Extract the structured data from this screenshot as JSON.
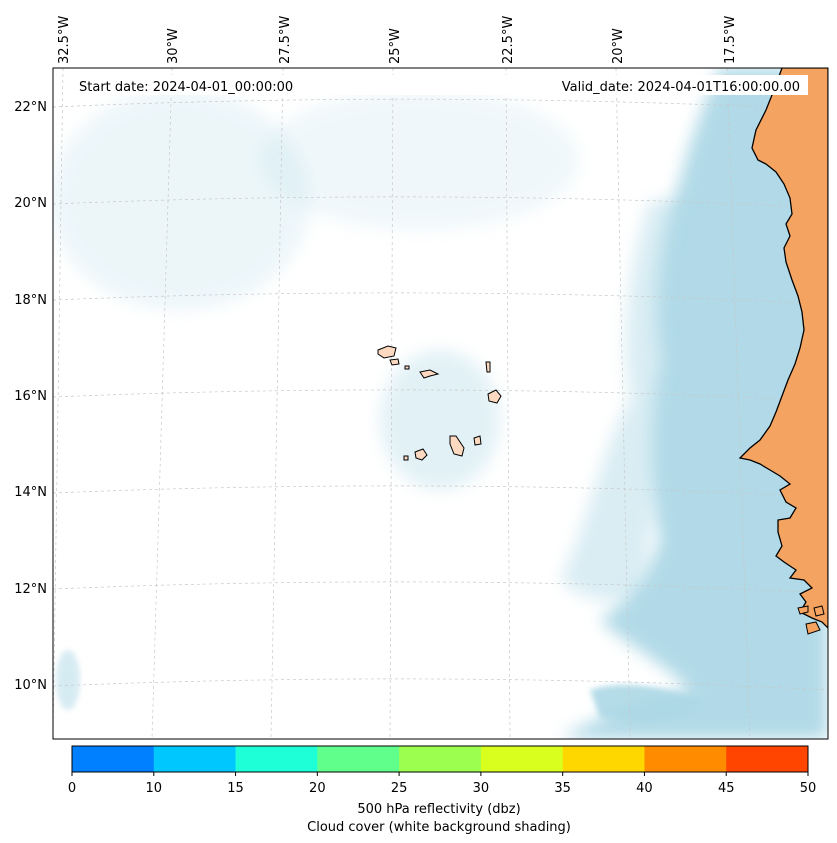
{
  "header": {
    "start_date": "Start date: 2024-04-01_00:00:00",
    "valid_date": "Valid_date: 2024-04-01T16:00:00.00"
  },
  "map": {
    "longitude_labels": [
      "32.5°W",
      "30°W",
      "27.5°W",
      "25°W",
      "22.5°W",
      "20°W",
      "17.5°W"
    ],
    "latitude_labels": [
      "22°N",
      "20°N",
      "18°N",
      "16°N",
      "14°N",
      "12°N",
      "10°N"
    ],
    "colors": {
      "ocean_cloud": "#add8e6",
      "land": "#f4a460",
      "coastline": "#000000",
      "gridline": "#c8c8c8"
    }
  },
  "colorbar": {
    "ticks": [
      "0",
      "10",
      "15",
      "20",
      "25",
      "30",
      "35",
      "40",
      "45",
      "50"
    ],
    "colors": [
      "#0080ff",
      "#00c8ff",
      "#1effd8",
      "#60ff8c",
      "#9cff50",
      "#d8ff1e",
      "#ffd700",
      "#ff8c00",
      "#ff4500"
    ],
    "label_line1": "500 hPa reflectivity (dbz)",
    "label_line2": "Cloud cover (white background shading)"
  }
}
